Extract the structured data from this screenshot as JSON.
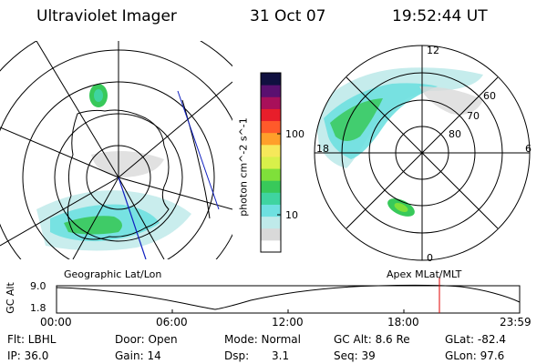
{
  "header": {
    "instrument": "Ultraviolet Imager",
    "date": "31 Oct 07",
    "time": "19:52:44 UT"
  },
  "left_panel": {
    "caption": "Geographic Lat/Lon"
  },
  "right_panel": {
    "caption": "Apex MLat/MLT",
    "lat_labels": [
      "60",
      "70",
      "80"
    ],
    "mlt_labels": {
      "top": "12",
      "left": "18",
      "right": "6",
      "bottom": "0"
    }
  },
  "colorbar": {
    "unit": "photon cm^-2 s^-1",
    "ticks": [
      "100",
      "10"
    ],
    "colors": [
      "#ffffff",
      "#d9d9d9",
      "#bfeaea",
      "#6ee0e0",
      "#3fd4a0",
      "#38c95a",
      "#7fe03a",
      "#d8f04a",
      "#f6e85a",
      "#ff9f2a",
      "#ff5a2a",
      "#e81e2a",
      "#a8105a",
      "#5a1070",
      "#101040"
    ]
  },
  "timeline": {
    "axis_label": "GC Alt",
    "y_ticks": [
      "9.0",
      "1.8"
    ],
    "x_ticks": [
      "00:00",
      "06:00",
      "12:00",
      "18:00",
      "23:59"
    ],
    "marker_color": "#e00000"
  },
  "status": {
    "row1": {
      "filter": "Flt: LBHL",
      "door": "Door: Open",
      "mode": "Mode: Normal",
      "gcalt": "GC Alt: 8.6 Re",
      "glat": "GLat: -82.4"
    },
    "row2": {
      "ip": "IP: 36.0",
      "gain": "Gain: 14",
      "dsp_label": "Dsp:",
      "dsp_value": "3.1",
      "seq": "Seq: 39",
      "glon": "GLon: 97.6"
    }
  }
}
